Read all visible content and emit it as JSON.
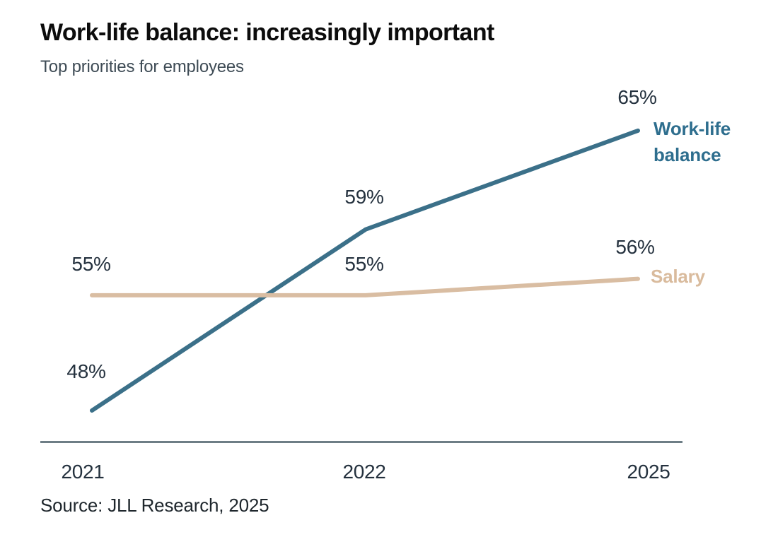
{
  "chart_data": {
    "type": "line",
    "title": "Work-life balance: increasingly important",
    "subtitle": "Top priorities for employees",
    "x_categories": [
      "2021",
      "2022",
      "2025"
    ],
    "series": [
      {
        "name": "Work-life balance",
        "values": [
          48,
          59,
          65
        ],
        "value_labels": [
          "48%",
          "59%",
          "65%"
        ],
        "line_color": "#3B7089",
        "label_color": "#2E6E8E"
      },
      {
        "name": "Salary",
        "values": [
          55,
          55,
          56
        ],
        "value_labels": [
          "55%",
          "55%",
          "56%"
        ],
        "line_color": "#D9BDA2",
        "label_color": "#D9BB9D"
      }
    ],
    "ylim": [
      46,
      68
    ],
    "grid": false,
    "legend_position": "right-of-line-ends",
    "axis_color": "#6E7E86",
    "value_label_color": "#24313E",
    "tick_label_color": "#24313E",
    "source": "Source: JLL Research, 2025"
  }
}
